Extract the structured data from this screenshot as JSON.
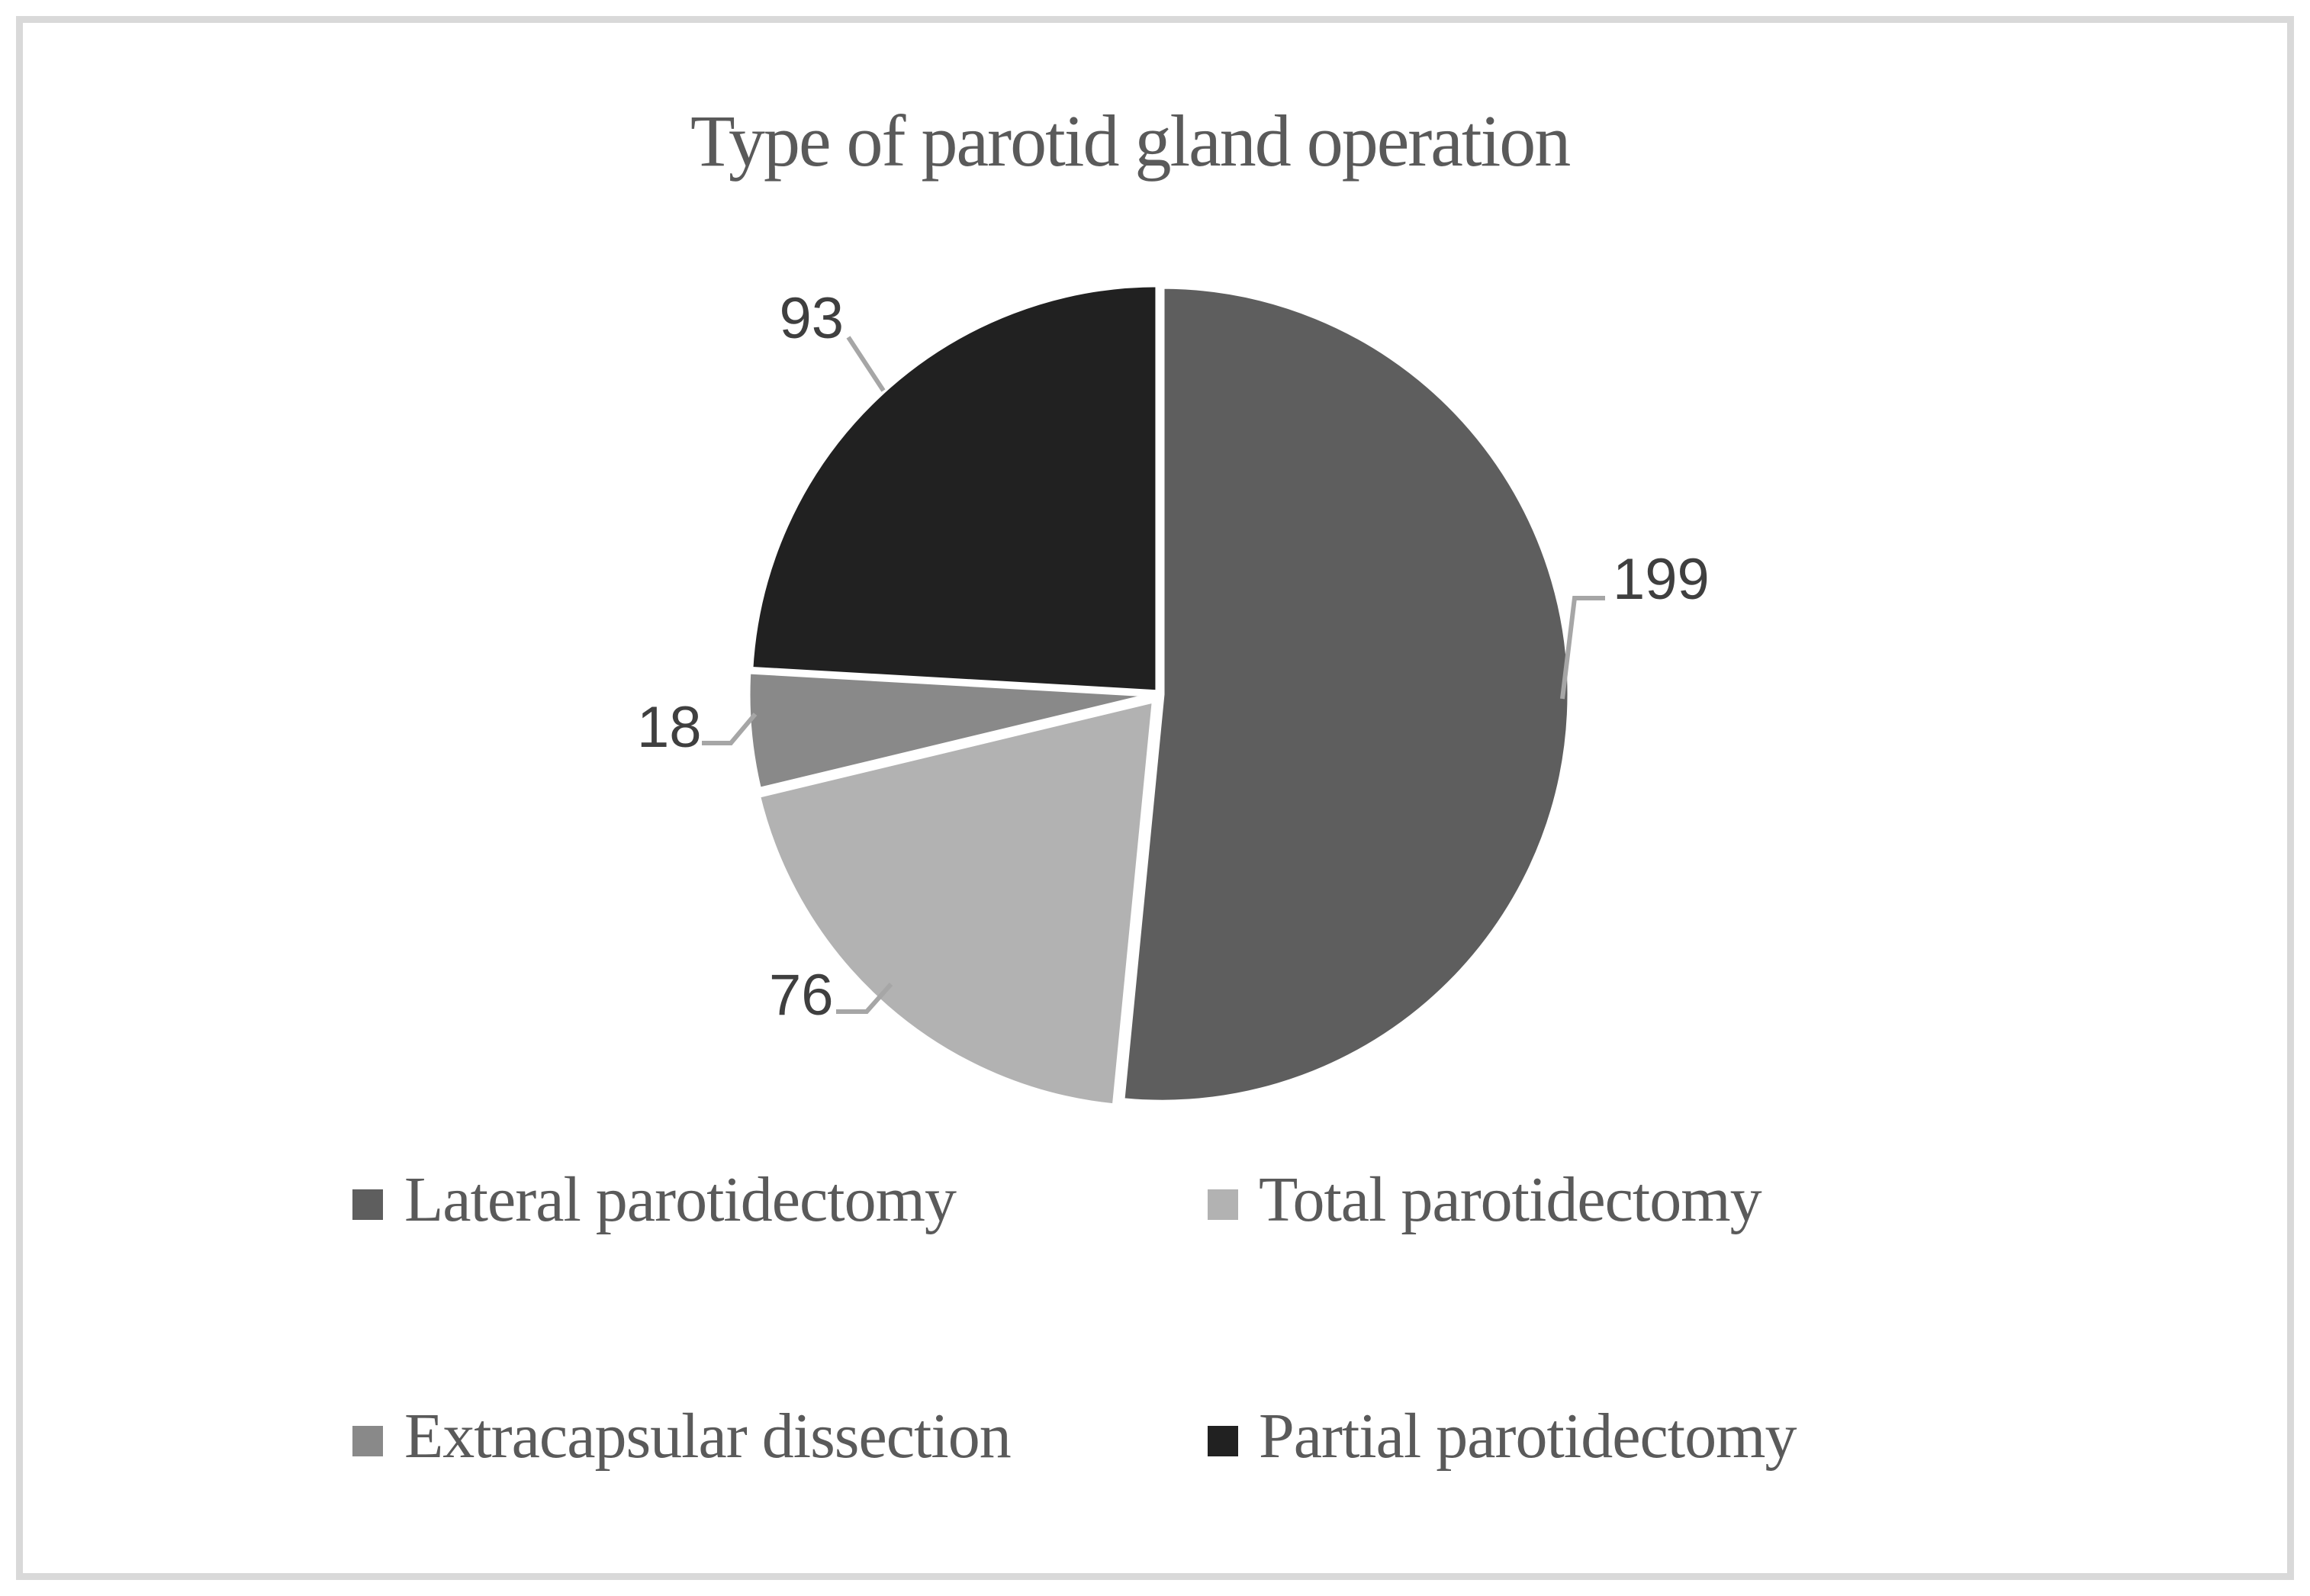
{
  "chart_data": {
    "type": "pie",
    "title": "Type of parotid gland operation",
    "categories": [
      "Lateral parotidectomy",
      "Total parotidectomy",
      "Extracapsular dissection",
      "Partial parotidectomy"
    ],
    "values": [
      199,
      76,
      18,
      93
    ],
    "total": 386,
    "colors": [
      "#5e5e5e",
      "#b2b2b2",
      "#898989",
      "#212121"
    ],
    "slice_border_color": "#ffffff",
    "data_labels": [
      199,
      76,
      18,
      93
    ],
    "data_label_color": "#3f3f3f",
    "leader_line_color": "#a6a6a6",
    "title_color": "#5a5a5a",
    "legend_text_color": "#5a5a5a",
    "legend_position": "bottom",
    "legend_columns": 2,
    "start_angle_deg": 0,
    "direction": "clockwise",
    "frame_color": "#d9d9d9",
    "background_color": "#ffffff"
  }
}
